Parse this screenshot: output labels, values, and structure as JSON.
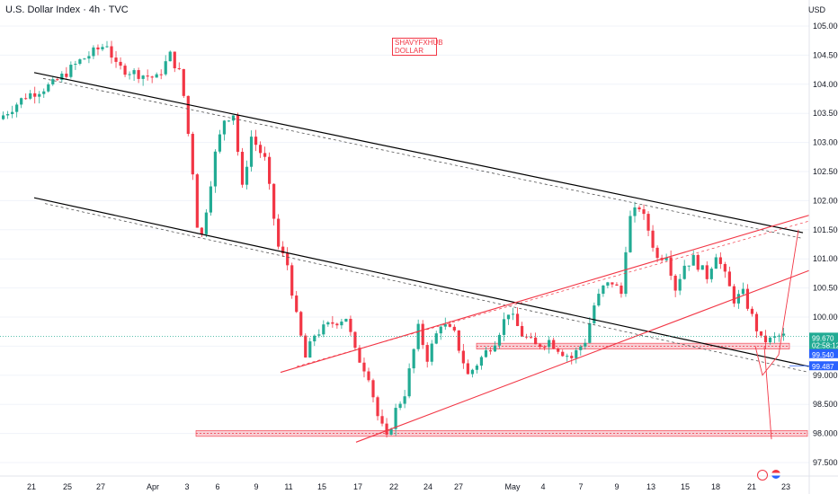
{
  "header": {
    "title": "U.S. Dollar Index · 4h · TVC",
    "currency": "USD"
  },
  "watermark": {
    "line1": "SHAVYFXHUB",
    "line2": "DOLLAR"
  },
  "colors": {
    "up": "#22ab94",
    "down": "#f23645",
    "channel": "#000000",
    "wedge": "#f23645",
    "zone": "#f4a0aa"
  },
  "price_labels": {
    "last": {
      "value": "99.670",
      "timer": "02:58:12",
      "color": "#22ab94"
    },
    "level_a": {
      "value": "99.540",
      "color": "#2962ff"
    },
    "level_b": {
      "value": "99.487",
      "color": "#2962ff"
    }
  },
  "icons": {
    "flash": "flash-icon",
    "flag": "us-flag-icon"
  },
  "chart_data": {
    "type": "candlestick",
    "title": "U.S. Dollar Index · 4h · TVC",
    "y_axis": {
      "label": "USD",
      "range": [
        97.4,
        105.2
      ],
      "ticks": [
        97.5,
        98.0,
        98.5,
        99.0,
        99.5,
        100.0,
        100.5,
        101.0,
        101.5,
        102.0,
        102.5,
        103.0,
        103.5,
        104.0,
        104.5,
        105.0
      ]
    },
    "x_axis": {
      "tick_labels": [
        "21",
        "25",
        "27",
        "Apr",
        "3",
        "6",
        "9",
        "11",
        "15",
        "17",
        "22",
        "24",
        "27",
        "May",
        "4",
        "7",
        "9",
        "13",
        "15",
        "18",
        "21",
        "23"
      ]
    },
    "price_path": [
      [
        0,
        103.4
      ],
      [
        6,
        103.8
      ],
      [
        12,
        104.0
      ],
      [
        18,
        104.4
      ],
      [
        24,
        104.7
      ],
      [
        26,
        104.3
      ],
      [
        30,
        104.2
      ],
      [
        35,
        104.1
      ],
      [
        38,
        104.5
      ],
      [
        40,
        104.2
      ],
      [
        41,
        103.8
      ],
      [
        43,
        102.5
      ],
      [
        44,
        101.6
      ],
      [
        45,
        101.4
      ],
      [
        48,
        102.8
      ],
      [
        50,
        103.4
      ],
      [
        52,
        103.5
      ],
      [
        54,
        102.2
      ],
      [
        56,
        103.1
      ],
      [
        59,
        102.7
      ],
      [
        62,
        101.2
      ],
      [
        64,
        100.9
      ],
      [
        66,
        100.0
      ],
      [
        68,
        99.3
      ],
      [
        70,
        99.7
      ],
      [
        74,
        99.9
      ],
      [
        77,
        100.0
      ],
      [
        79,
        99.4
      ],
      [
        82,
        99.0
      ],
      [
        84,
        98.3
      ],
      [
        86,
        97.9
      ],
      [
        88,
        98.4
      ],
      [
        90,
        98.7
      ],
      [
        93,
        99.8
      ],
      [
        95,
        99.3
      ],
      [
        98,
        99.9
      ],
      [
        101,
        99.7
      ],
      [
        104,
        99.0
      ],
      [
        107,
        99.3
      ],
      [
        110,
        99.6
      ],
      [
        113,
        100.1
      ],
      [
        116,
        99.7
      ],
      [
        119,
        99.5
      ],
      [
        122,
        99.6
      ],
      [
        125,
        99.4
      ],
      [
        127,
        99.3
      ],
      [
        130,
        99.6
      ],
      [
        132,
        100.2
      ],
      [
        134,
        100.5
      ],
      [
        136,
        100.6
      ],
      [
        138,
        100.4
      ],
      [
        139,
        101.2
      ],
      [
        140,
        101.7
      ],
      [
        142,
        101.9
      ],
      [
        144,
        101.5
      ],
      [
        146,
        101.0
      ],
      [
        148,
        101.1
      ],
      [
        150,
        100.5
      ],
      [
        152,
        100.9
      ],
      [
        154,
        101.0
      ],
      [
        155,
        100.9
      ],
      [
        157,
        100.7
      ],
      [
        159,
        101.1
      ],
      [
        161,
        100.7
      ],
      [
        163,
        100.3
      ],
      [
        165,
        100.4
      ],
      [
        167,
        100.0
      ],
      [
        169,
        99.6
      ],
      [
        171,
        99.6
      ],
      [
        173,
        99.67
      ]
    ],
    "drawings": {
      "descending_channel_upper": [
        [
          "Mar 20",
          104.2
        ],
        [
          "May 23",
          101.45
        ]
      ],
      "descending_channel_lower": [
        [
          "Mar 20",
          102.05
        ],
        [
          "May 23",
          99.15
        ]
      ],
      "rising_wedge_upper": [
        [
          "Apr 10",
          99.05
        ],
        [
          "May 23",
          101.75
        ]
      ],
      "rising_wedge_lower": [
        [
          "Apr 17",
          97.85
        ],
        [
          "May 23",
          100.8
        ]
      ],
      "resistance_zone": [
        99.45,
        99.55
      ],
      "support_zone": [
        97.95,
        98.05
      ],
      "projection_paths": [
        [
          99.5,
          99.0,
          101.5
        ],
        [
          99.5,
          97.9
        ]
      ]
    }
  }
}
